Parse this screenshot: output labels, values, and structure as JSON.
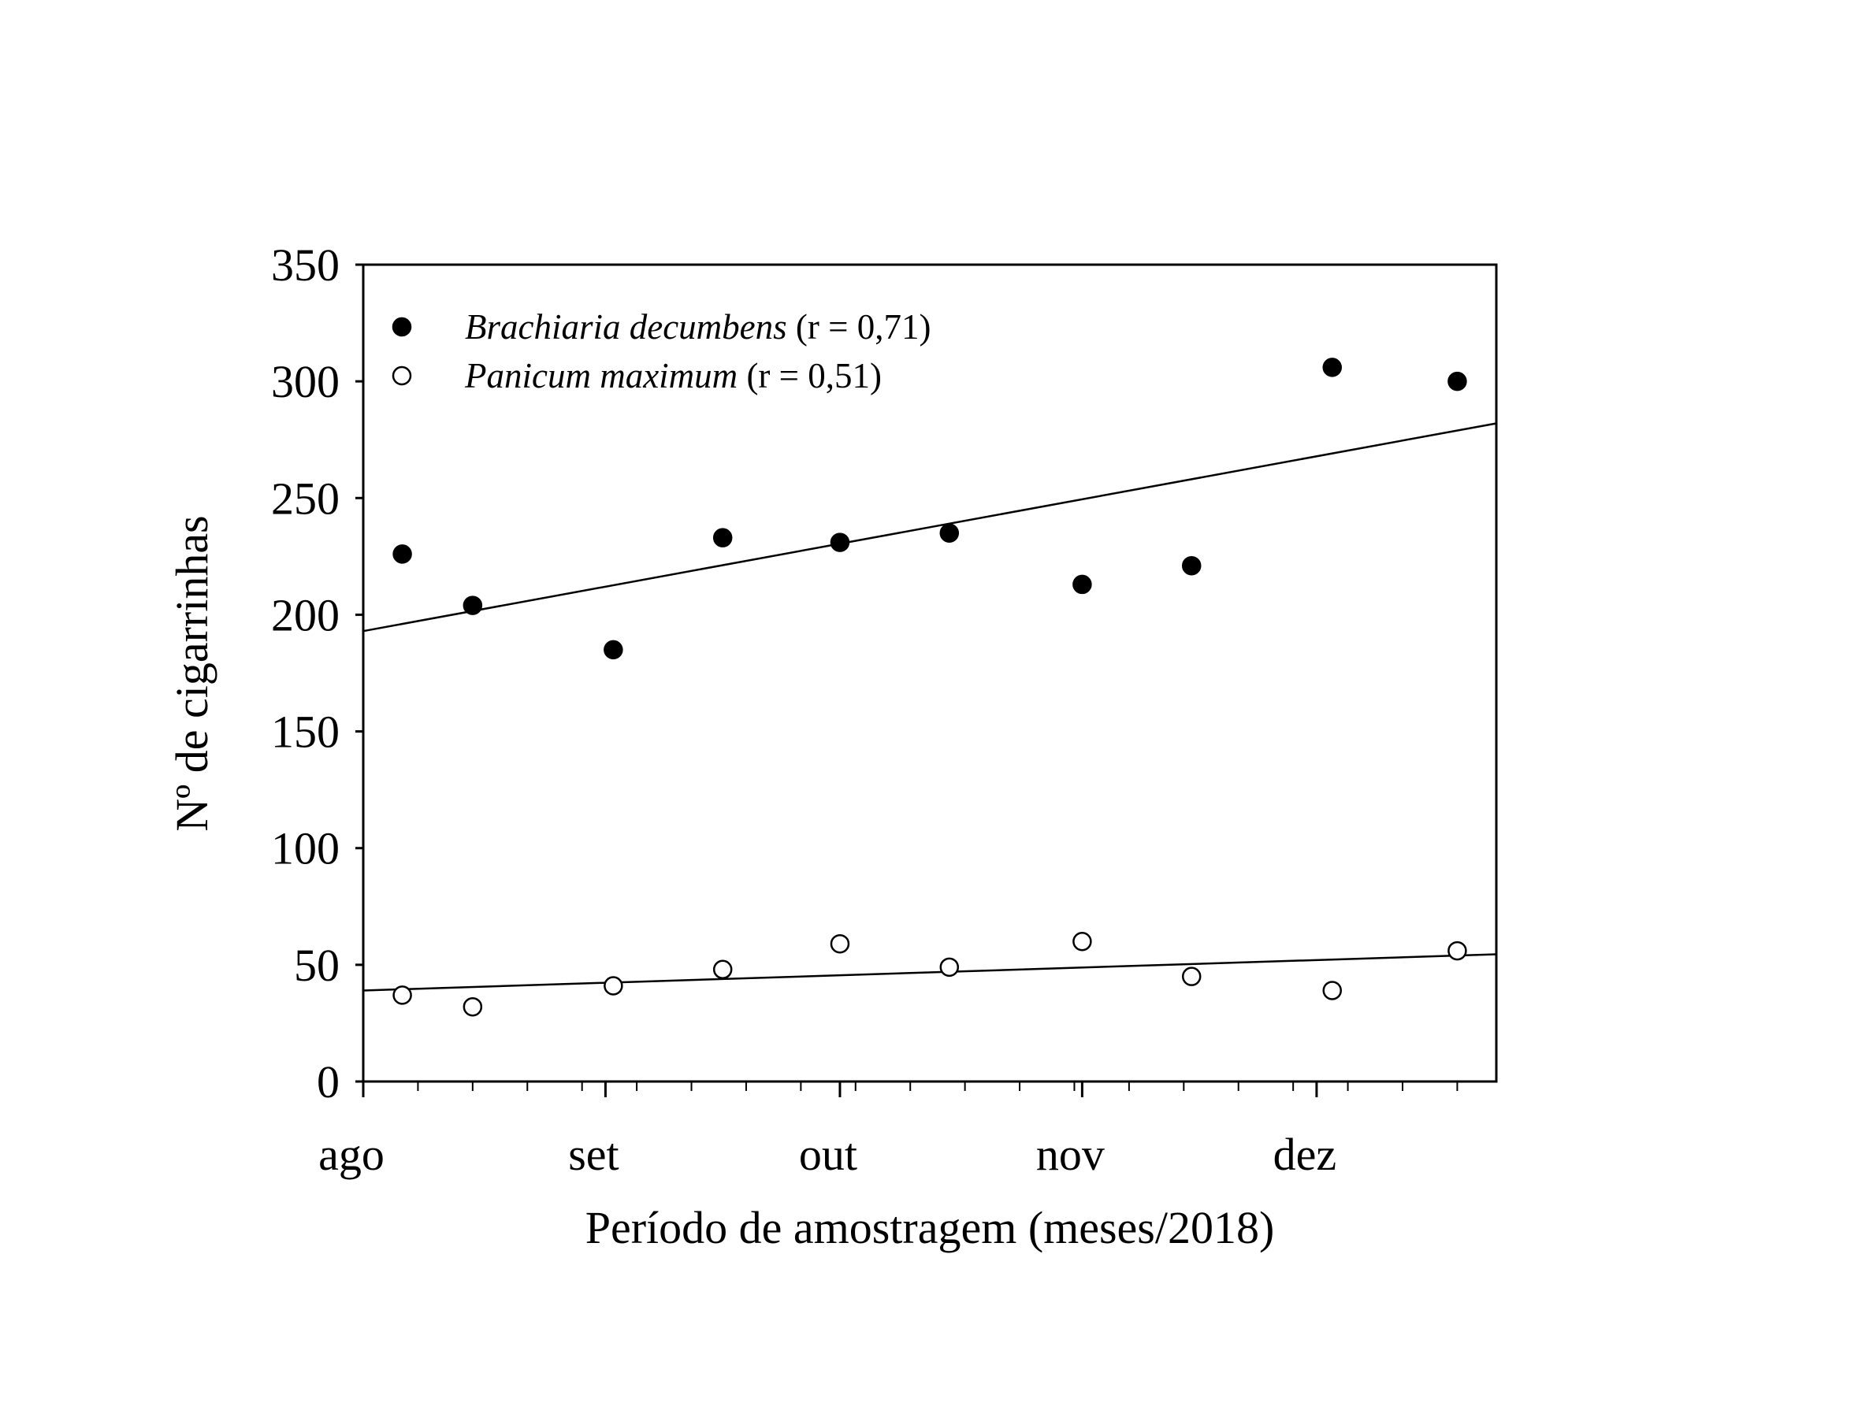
{
  "chart_data": {
    "type": "scatter",
    "title": "",
    "xlabel": "Período de amostragem (meses/2018)",
    "ylabel": "Nº de cigarrinhas",
    "x_unit": "days since 1 Aug 2018",
    "xlim": [
      0,
      145
    ],
    "ylim": [
      0,
      350
    ],
    "yticks": [
      0,
      50,
      100,
      150,
      200,
      250,
      300,
      350
    ],
    "xticks": [
      {
        "value": 0,
        "label": "ago"
      },
      {
        "value": 31,
        "label": "set"
      },
      {
        "value": 61,
        "label": "out"
      },
      {
        "value": 92,
        "label": "nov"
      },
      {
        "value": 122,
        "label": "dez"
      }
    ],
    "minor_tick_step_days": 7,
    "grid": false,
    "legend_position": "top-left",
    "series": [
      {
        "name": "Brachiaria decumbens",
        "suffix": " (r = 0,71)",
        "marker": "filled-circle",
        "x": [
          5,
          14,
          32,
          46,
          61,
          75,
          92,
          106,
          124,
          140
        ],
        "y": [
          226,
          204,
          185,
          233,
          231,
          235,
          213,
          221,
          306,
          300
        ],
        "trend": {
          "x": [
            0,
            145
          ],
          "y": [
            193,
            282
          ]
        }
      },
      {
        "name": "Panicum maximum",
        "suffix": " (r = 0,51)",
        "marker": "open-circle",
        "x": [
          5,
          14,
          32,
          46,
          61,
          75,
          92,
          106,
          124,
          140
        ],
        "y": [
          37,
          32,
          41,
          48,
          59,
          49,
          60,
          45,
          39,
          56
        ],
        "trend": {
          "x": [
            0,
            145
          ],
          "y": [
            39,
            54.5
          ]
        }
      }
    ]
  }
}
